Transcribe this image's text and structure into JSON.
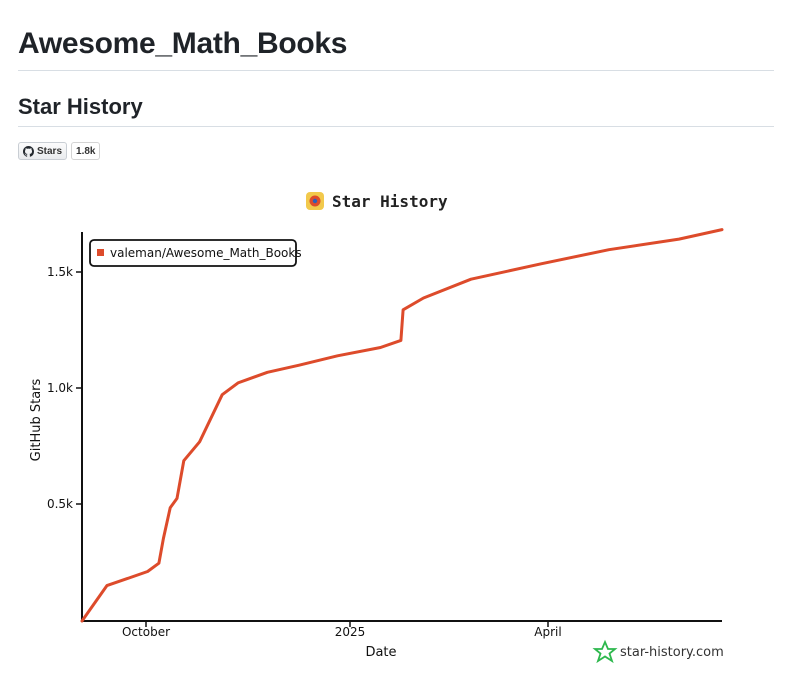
{
  "page": {
    "title": "Awesome_Math_Books",
    "section_title": "Star History"
  },
  "badge": {
    "label": "Stars",
    "count": "1.8k",
    "icon": "github-icon"
  },
  "brand": {
    "text": "star-history.com",
    "icon": "star-history-logo-icon",
    "color": "#2db84d"
  },
  "chart_data": {
    "type": "line",
    "title": "Star History",
    "xlabel": "Date",
    "ylabel": "GitHub Stars",
    "x_ticks": [
      "October",
      "2025",
      "April"
    ],
    "y_ticks": [
      "0.5k",
      "1.0k",
      "1.5k"
    ],
    "ylim": [
      0,
      1650
    ],
    "xlim": [
      "2024-09-10",
      "2025-06-20"
    ],
    "legend_position": "top-left",
    "grid": false,
    "series": [
      {
        "name": "valeman/Awesome_Math_Books",
        "color": "#dd4b2b",
        "points": [
          [
            "2024-09-10",
            0
          ],
          [
            "2024-09-21",
            150
          ],
          [
            "2024-09-30",
            180
          ],
          [
            "2024-10-09",
            210
          ],
          [
            "2024-10-14",
            245
          ],
          [
            "2024-10-16",
            350
          ],
          [
            "2024-10-19",
            480
          ],
          [
            "2024-10-22",
            520
          ],
          [
            "2024-10-25",
            680
          ],
          [
            "2024-11-01",
            760
          ],
          [
            "2024-11-11",
            960
          ],
          [
            "2024-11-18",
            1010
          ],
          [
            "2024-12-01",
            1055
          ],
          [
            "2024-12-15",
            1085
          ],
          [
            "2025-01-01",
            1125
          ],
          [
            "2025-01-20",
            1160
          ],
          [
            "2025-01-29",
            1190
          ],
          [
            "2025-01-30",
            1320
          ],
          [
            "2025-02-08",
            1370
          ],
          [
            "2025-03-01",
            1450
          ],
          [
            "2025-04-01",
            1515
          ],
          [
            "2025-05-01",
            1575
          ],
          [
            "2025-06-01",
            1620
          ],
          [
            "2025-06-20",
            1660
          ]
        ]
      }
    ]
  }
}
